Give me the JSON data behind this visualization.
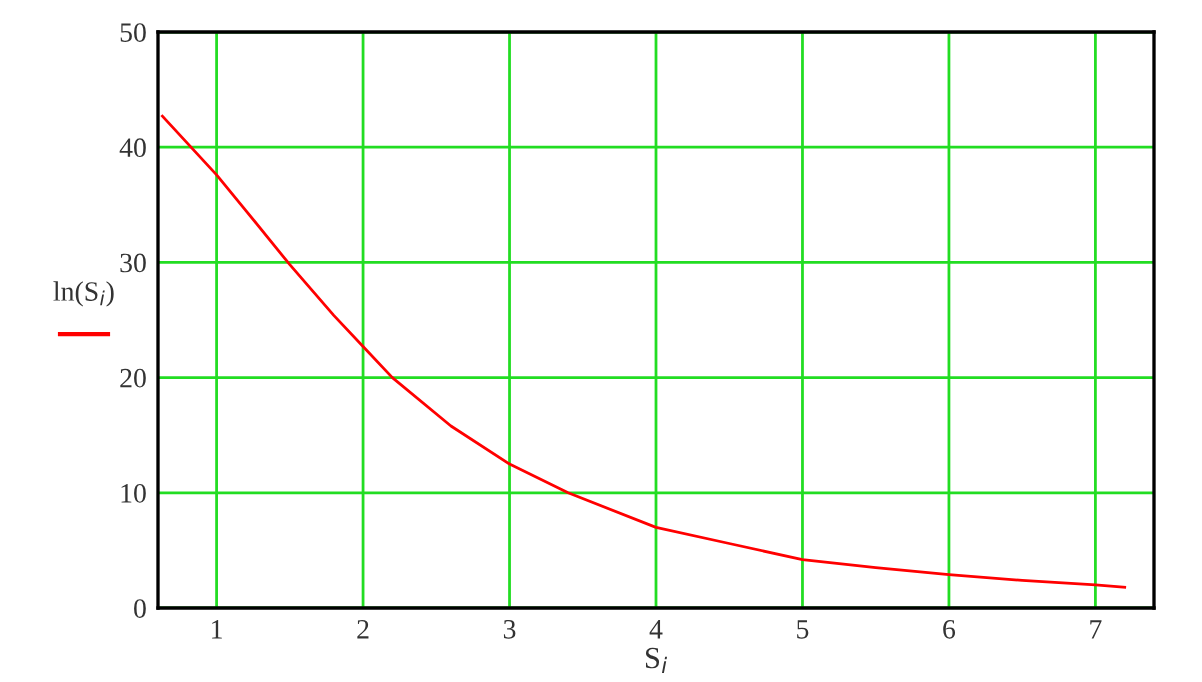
{
  "chart_data": {
    "type": "line",
    "xlabel": "S$_{i}$",
    "x": [
      0.63,
      1,
      1.2,
      1.5,
      1.8,
      2,
      2.2,
      2.6,
      3,
      3.4,
      4,
      4.5,
      5,
      5.5,
      6,
      6.5,
      7,
      7.2
    ],
    "series": [
      {
        "name": "ln(S$_{i}$)",
        "color": "#ff0000",
        "values": [
          42.7,
          37.6,
          34.5,
          29.8,
          25.4,
          22.7,
          20,
          15.8,
          12.5,
          10,
          7,
          5.6,
          4.2,
          3.5,
          2.9,
          2.4,
          2,
          1.8
        ]
      }
    ],
    "xlim": [
      0.6,
      7.4
    ],
    "xticks": [
      1,
      2,
      3,
      4,
      5,
      6,
      7
    ],
    "ylim": [
      0,
      50
    ],
    "yticks": [
      0,
      10,
      20,
      30,
      40,
      50
    ],
    "grid": true,
    "legend": "left",
    "marker": "none",
    "line_style": "solid"
  }
}
